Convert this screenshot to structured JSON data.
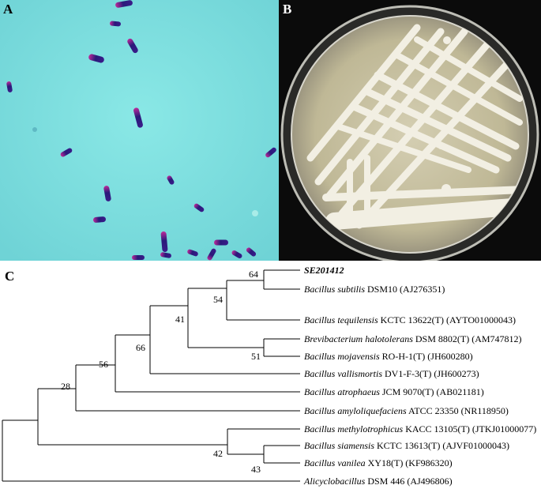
{
  "panels": {
    "a": {
      "label": "A"
    },
    "b": {
      "label": "B"
    },
    "c": {
      "label": "C"
    }
  },
  "colors": {
    "stain_background": "#7fe0e0",
    "cell_dark": "#2a1a7a",
    "cell_magenta": "#c02a9a",
    "agar": "#c9c2a4",
    "colony": "#f2efe3",
    "plate_background": "#0b0b0b"
  },
  "tree": {
    "taxa": [
      {
        "italic": "SE201412",
        "rest": "",
        "bold": true
      },
      {
        "italic": "Bacillus subtilis",
        "rest": " DSM10 (AJ276351)"
      },
      {
        "italic": "Bacillus tequilensis",
        "rest": " KCTC 13622(T) (AYTO01000043)"
      },
      {
        "italic": "Brevibacterium halotolerans",
        "rest": " DSM 8802(T) (AM747812)"
      },
      {
        "italic": "Bacillus mojavensis",
        "rest": " RO-H-1(T) (JH600280)"
      },
      {
        "italic": "Bacillus vallismortis",
        "rest": " DV1-F-3(T) (JH600273)"
      },
      {
        "italic": "Bacillus atrophaeus",
        "rest": " JCM 9070(T) (AB021181)"
      },
      {
        "italic": "Bacillus amyloliquefaciens",
        "rest": " ATCC 23350 (NR118950)"
      },
      {
        "italic": "Bacillus methylotrophicus",
        "rest": " KACC 13105(T) (JTKJ01000077)"
      },
      {
        "italic": "Bacillus siamensis",
        "rest": " KCTC 13613(T) (AJVF01000043)"
      },
      {
        "italic": "Bacillus vanilea",
        "rest": " XY18(T) (KF986320)"
      },
      {
        "italic": "Alicyclobacillus",
        "rest": " DSM 446 (AJ496806)"
      }
    ],
    "bootstrap": [
      "64",
      "54",
      "41",
      "66",
      "56",
      "28",
      "51",
      "42",
      "43"
    ]
  }
}
